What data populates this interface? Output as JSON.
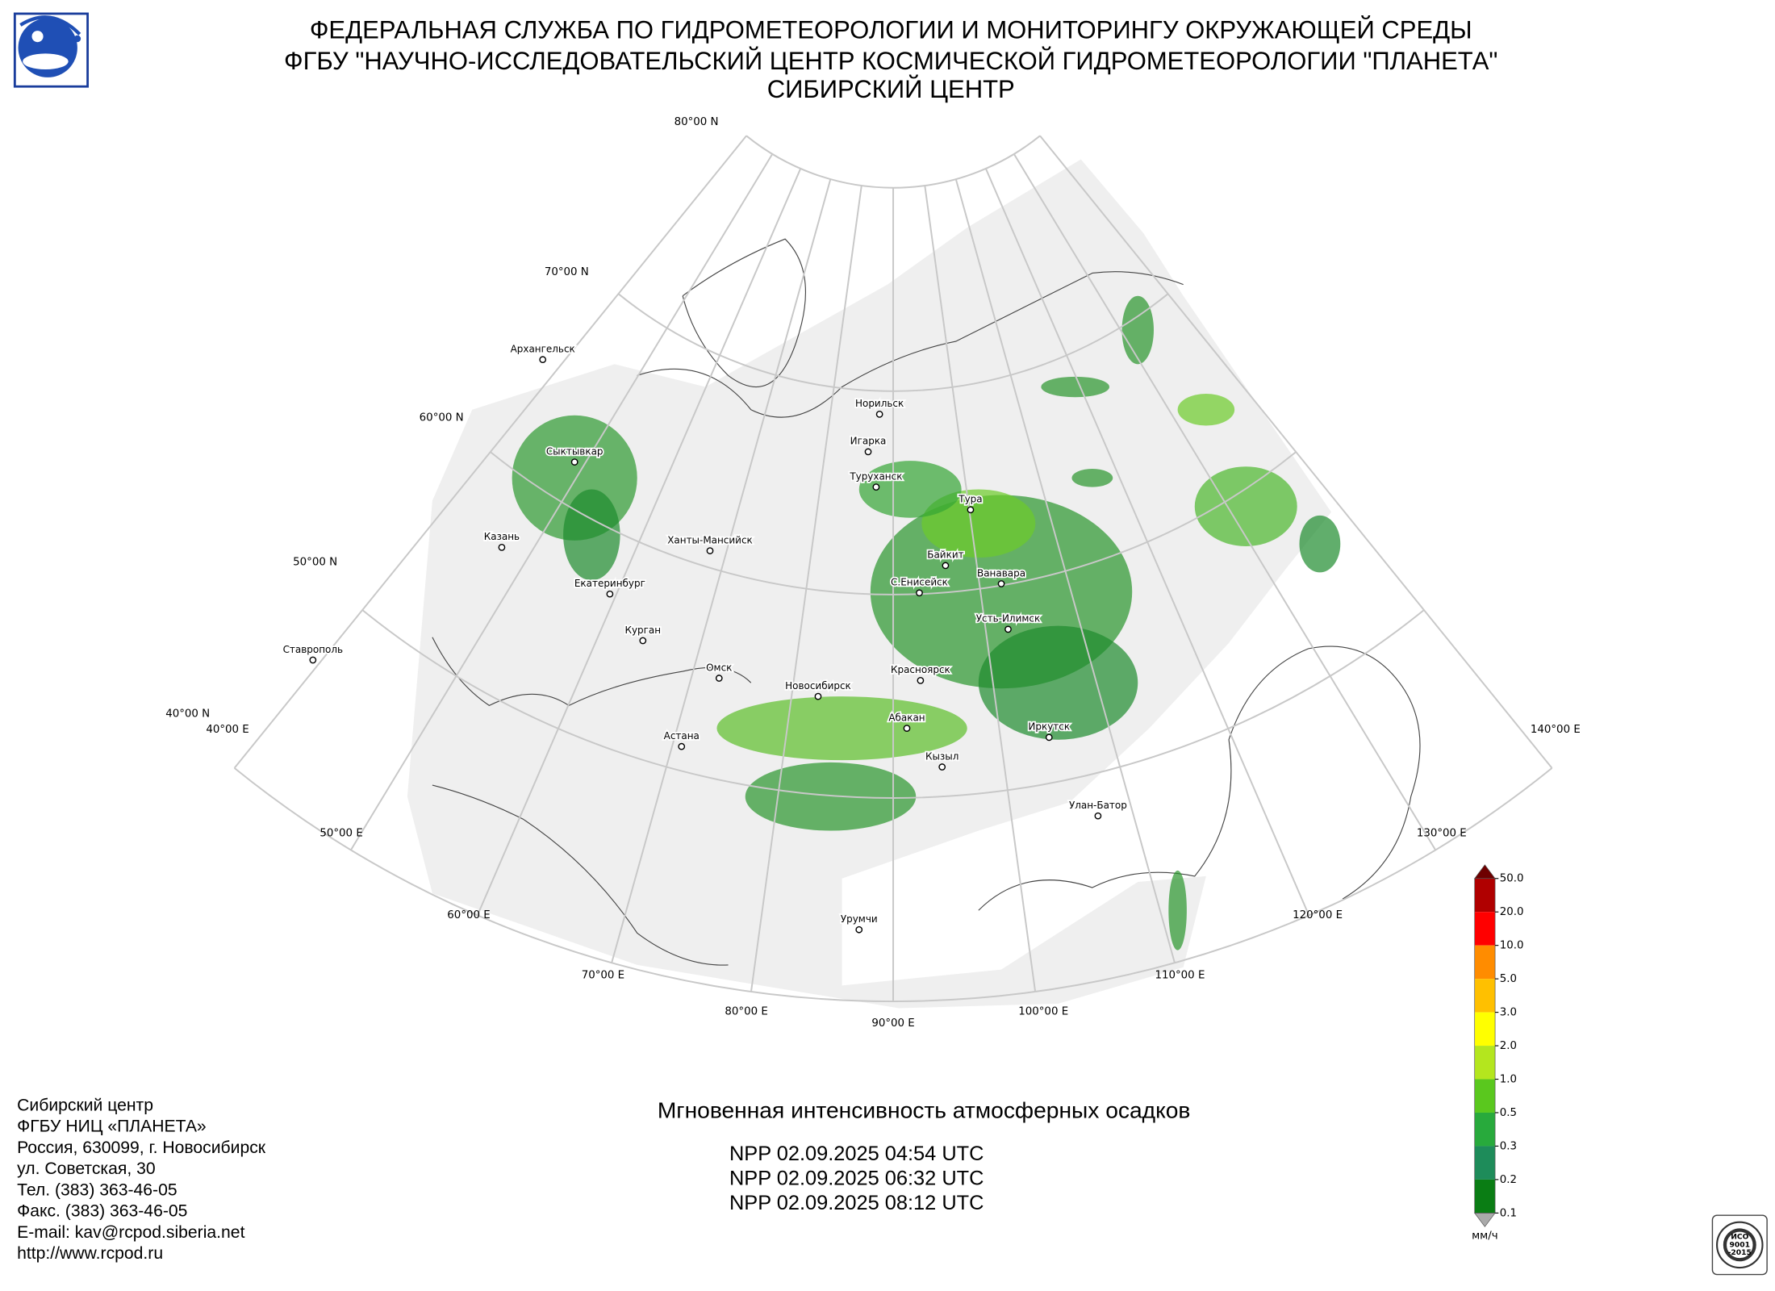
{
  "header": {
    "lines": [
      "ФЕДЕРАЛЬНАЯ СЛУЖБА ПО ГИДРОМЕТЕОРОЛОГИИ И МОНИТОРИНГУ ОКРУЖАЮЩЕЙ СРЕДЫ",
      "ФГБУ \"НАУЧНО-ИССЛЕДОВАТЕЛЬСКИЙ ЦЕНТР КОСМИЧЕСКОЙ ГИДРОМЕТЕОРОЛОГИИ \"ПЛАНЕТА\"",
      "СИБИРСКИЙ ЦЕНТР"
    ]
  },
  "map": {
    "latitude_labels": [
      "80°00 N",
      "70°00 N",
      "60°00 N",
      "50°00 N",
      "40°00 N"
    ],
    "longitude_labels": [
      "40°00 E",
      "50°00 E",
      "60°00 E",
      "70°00 E",
      "80°00 E",
      "90°00 E",
      "100°00 E",
      "110°00 E",
      "120°00 E",
      "130°00 E",
      "140°00 E"
    ],
    "cities": [
      "Архангельск",
      "Сыктывкар",
      "Казань",
      "Екатеринбург",
      "Ханты-Мансийск",
      "Курган",
      "Ставрополь",
      "Омск",
      "Новосибирск",
      "Астана",
      "Норильск",
      "Игарка",
      "Туруханск",
      "Тура",
      "Байкит",
      "Ванавара",
      "С.Енисейск",
      "Усть-Илимск",
      "Красноярск",
      "Абакан",
      "Иркутск",
      "Кызыл",
      "Улан-Батор",
      "Урумчи"
    ]
  },
  "legend": {
    "labels": [
      "50.0",
      "20.0",
      "10.0",
      "5.0",
      "3.0",
      "2.0",
      "1.0",
      "0.5",
      "0.3",
      "0.2",
      "0.1"
    ],
    "colors": [
      "#b00000",
      "#ff0000",
      "#ff8c00",
      "#ffc000",
      "#ffff00",
      "#b4e61e",
      "#5ac81e",
      "#28aa3c",
      "#1e8c5a",
      "#0a7d14"
    ],
    "over_color": "#6e0000",
    "under_color": "#aaaaaa",
    "unit": "мм/ч"
  },
  "product": {
    "title": "Мгновенная интенсивность атмосферных осадков",
    "passes": [
      "NPP 02.09.2025  04:54 UTC",
      "NPP 02.09.2025  06:32 UTC",
      "NPP 02.09.2025  08:12 UTC"
    ]
  },
  "contact": {
    "lines": [
      "Сибирский центр",
      "ФГБУ НИЦ «ПЛАНЕТА»",
      "Россия, 630099, г. Новосибирск",
      "ул. Советская, 30",
      "Тел. (383) 363-46-05",
      "Факс. (383) 363-46-05",
      "E-mail: kav@rcpod.siberia.net",
      "http://www.rcpod.ru"
    ]
  },
  "badge": {
    "lines": [
      "ИСО",
      "9001",
      "-2015"
    ]
  }
}
